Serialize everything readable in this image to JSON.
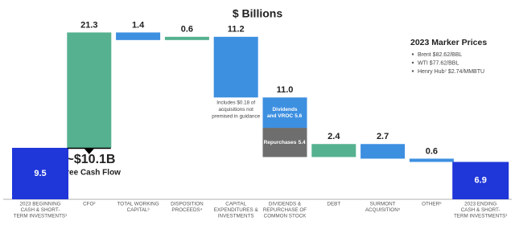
{
  "chart_data": {
    "type": "waterfall",
    "title": "$ Billions",
    "categories": [
      [
        "2023 BEGINNING",
        "CASH & SHORT-",
        "TERM INVESTMENTS¹"
      ],
      [
        "CFO²"
      ],
      [
        "TOTAL WORKING",
        "CAPITAL³"
      ],
      [
        "DISPOSITION",
        "PROCEEDS⁴"
      ],
      [
        "CAPITAL",
        "EXPENDITURES &",
        "INVESTMENTS"
      ],
      [
        "DIVIDENDS &",
        "REPURCHASE OF",
        "COMMON STOCK"
      ],
      [
        "DEBT"
      ],
      [
        "SURMONT",
        "ACQUISITION⁵"
      ],
      [
        "OTHER⁶"
      ],
      [
        "2023 ENDING",
        "CASH & SHORT-",
        "TERM INVESTMENTS¹"
      ]
    ],
    "measures": [
      "total",
      "relative",
      "relative",
      "relative",
      "relative",
      "relative",
      "relative",
      "relative",
      "relative",
      "total"
    ],
    "values": [
      9.5,
      21.3,
      -1.4,
      0.6,
      -11.2,
      -11.0,
      2.4,
      -2.7,
      -0.6,
      6.9
    ],
    "value_labels": [
      "9.5",
      "21.3",
      "1.4",
      "0.6",
      "11.2",
      "11.0",
      "2.4",
      "2.7",
      "0.6",
      "6.9"
    ],
    "colors": {
      "total": "#1f36d8",
      "increase": "#55b190",
      "decrease": "#3d8fe0"
    },
    "breakdown": {
      "index": 5,
      "segments": [
        {
          "name_lines": [
            "Dividends",
            "and VROC"
          ],
          "value": -5.6,
          "value_label": "5.6",
          "color": "#3d8fe0"
        },
        {
          "name_lines": [
            "Repurchases"
          ],
          "value": -5.4,
          "value_label": "5.4",
          "color": "#6e6e6e"
        }
      ]
    },
    "annotations": {
      "fcf_value": "~$10.1B",
      "fcf_label": "Free Cash Flow",
      "capex_note": [
        "Includes $0.18 of",
        "acquisitions not",
        "premised in guidance"
      ]
    },
    "marker_prices": {
      "title": "2023 Marker Prices",
      "items": [
        "Brent $82.62/BBL",
        "WTI $77.62/BBL",
        "Henry Hub⁷ $2.74/MMBTU"
      ]
    }
  }
}
